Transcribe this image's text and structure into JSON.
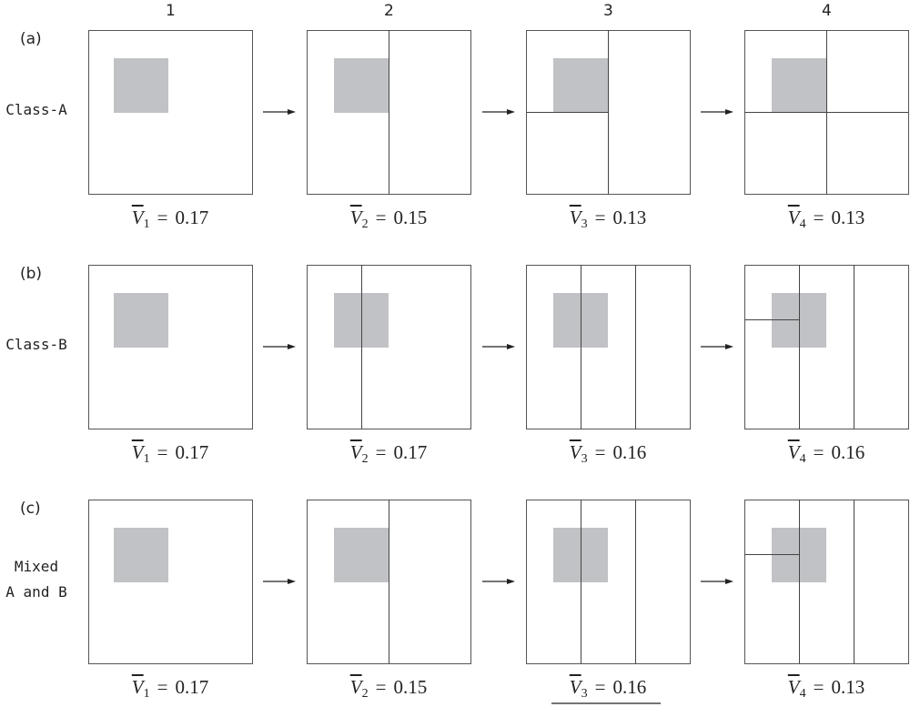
{
  "columns": [
    "1",
    "2",
    "3",
    "4"
  ],
  "rows": [
    {
      "tag": "(a)",
      "label": [
        "Class-A"
      ],
      "captions": [
        {
          "symbol": "V",
          "index": "1",
          "operator": "=",
          "value": "0.17"
        },
        {
          "symbol": "V",
          "index": "2",
          "operator": "=",
          "value": "0.15"
        },
        {
          "symbol": "V",
          "index": "3",
          "operator": "=",
          "value": "0.13"
        },
        {
          "symbol": "V",
          "index": "4",
          "operator": "=",
          "value": "0.13"
        }
      ]
    },
    {
      "tag": "(b)",
      "label": [
        "Class-B"
      ],
      "captions": [
        {
          "symbol": "V",
          "index": "1",
          "operator": "=",
          "value": "0.17"
        },
        {
          "symbol": "V",
          "index": "2",
          "operator": "=",
          "value": "0.17"
        },
        {
          "symbol": "V",
          "index": "3",
          "operator": "=",
          "value": "0.16"
        },
        {
          "symbol": "V",
          "index": "4",
          "operator": "=",
          "value": "0.16"
        }
      ]
    },
    {
      "tag": "(c)",
      "label": [
        "Mixed",
        "A and B"
      ],
      "captions": [
        {
          "symbol": "V",
          "index": "1",
          "operator": "=",
          "value": "0.17"
        },
        {
          "symbol": "V",
          "index": "2",
          "operator": "=",
          "value": "0.15"
        },
        {
          "symbol": "V",
          "index": "3",
          "operator": "=",
          "value": "0.16"
        },
        {
          "symbol": "V",
          "index": "4",
          "operator": "=",
          "value": "0.13"
        }
      ]
    }
  ]
}
